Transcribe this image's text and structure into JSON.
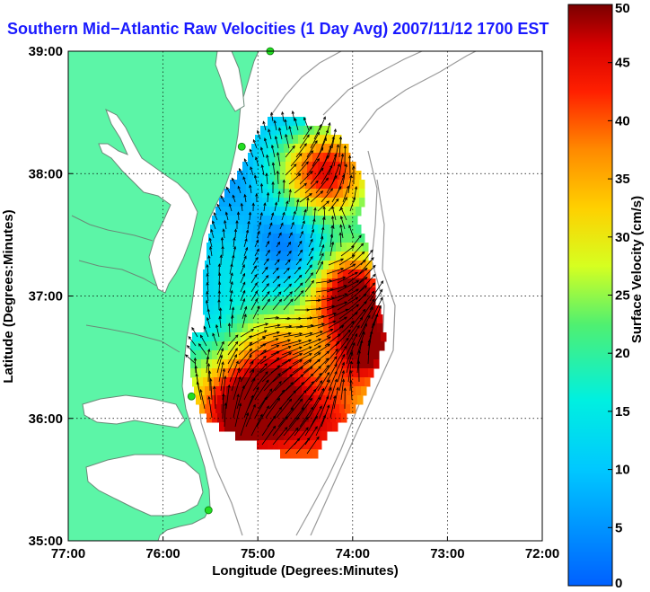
{
  "title": "Southern Mid−Atlantic Raw Velocities (1 Day Avg) 2007/11/12 1700 EST",
  "colors": {
    "title": "#1a1aff",
    "land": "#5cf5a7",
    "coast": "#6a8a78",
    "bathymetry": "#9a9a9a",
    "station": "#22dd22",
    "grid": "#000000"
  },
  "chart_data": {
    "type": "heatmap",
    "subtype": "surface current vector map",
    "xlabel": "Longitude (Degrees:Minutes)",
    "ylabel": "Latitude (Degrees:Minutes)",
    "x_ticks": [
      "77:00",
      "76:00",
      "75:00",
      "74:00",
      "73:00",
      "72:00"
    ],
    "y_ticks": [
      "39:00",
      "38:00",
      "37:00",
      "36:00",
      "35:00"
    ],
    "xlim": [
      -77,
      -72
    ],
    "ylim": [
      35,
      39
    ],
    "grid": true,
    "colorbar": {
      "label": "Surface Velocity (cm/s)",
      "range": [
        0,
        50
      ],
      "ticks": [
        "50",
        "45",
        "40",
        "35",
        "30",
        "25",
        "20",
        "15",
        "10",
        "5",
        "0"
      ],
      "placement": "right"
    },
    "stations": [
      {
        "lon": -74.87,
        "lat": 39.0
      },
      {
        "lon": -75.17,
        "lat": 38.22
      },
      {
        "lon": -75.7,
        "lat": 36.18
      },
      {
        "lon": -75.52,
        "lat": 35.25
      }
    ]
  }
}
